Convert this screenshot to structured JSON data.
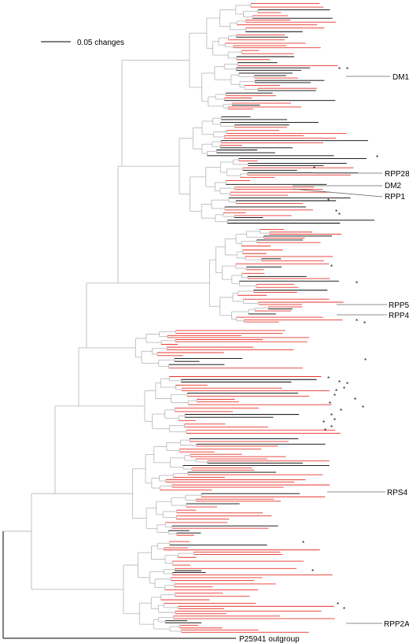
{
  "scale_bar": {
    "label": "0.05 changes"
  },
  "labels": {
    "dm1": "DM1",
    "rpp28": "RPP28",
    "dm2": "DM2",
    "rpp1": "RPP1",
    "rpp5": "RPP5",
    "rpp4": "RPP4",
    "rps4": "RPS4",
    "rpp2a": "RPP2A",
    "outgroup": "P25941 outgroup"
  },
  "marker_symbol": "*",
  "colors": {
    "internal": "#bdbdbd",
    "red_leaf": "#e8342c",
    "black_leaf": "#000000"
  }
}
